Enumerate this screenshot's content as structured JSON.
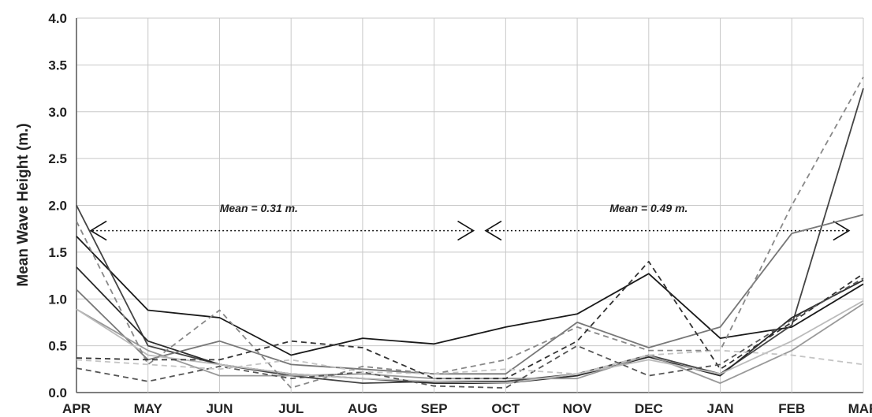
{
  "chart_data": {
    "type": "line",
    "categories": [
      "APR",
      "MAY",
      "JUN",
      "JUL",
      "AUG",
      "SEP",
      "OCT",
      "NOV",
      "DEC",
      "JAN",
      "FEB",
      "MAR"
    ],
    "ylabel": "Mean Wave Height (m.)",
    "ylim": [
      0,
      4.0
    ],
    "yticks": [
      "0.0",
      "0.5",
      "1.0",
      "1.5",
      "2.0",
      "2.5",
      "3.0",
      "3.5",
      "4.0"
    ],
    "grid": true,
    "annotations": [
      {
        "text": "Mean = 0.31 m.",
        "from": "MAY",
        "to": "SEP"
      },
      {
        "text": "Mean = 0.49 m.",
        "from": "OCT",
        "to": "FEB"
      }
    ],
    "series": [
      {
        "values": [
          1.67,
          0.88,
          0.8,
          0.4,
          0.58,
          0.52,
          0.7,
          0.84,
          1.27,
          0.58,
          0.7,
          1.16
        ],
        "color": "#1a1a1a",
        "dash": ""
      },
      {
        "values": [
          2.0,
          0.5,
          0.3,
          0.18,
          0.1,
          0.12,
          0.12,
          0.2,
          0.4,
          0.2,
          0.72,
          3.25
        ],
        "color": "#444444",
        "dash": ""
      },
      {
        "values": [
          1.34,
          0.55,
          0.3,
          0.2,
          0.15,
          0.1,
          0.1,
          0.18,
          0.38,
          0.18,
          0.8,
          1.2
        ],
        "color": "#2a2a2a",
        "dash": ""
      },
      {
        "values": [
          1.1,
          0.35,
          0.55,
          0.3,
          0.25,
          0.2,
          0.2,
          0.75,
          0.48,
          0.7,
          1.7,
          1.9
        ],
        "color": "#777777",
        "dash": ""
      },
      {
        "values": [
          0.89,
          0.45,
          0.18,
          0.18,
          0.2,
          0.15,
          0.15,
          0.15,
          0.4,
          0.1,
          0.45,
          0.95
        ],
        "color": "#999999",
        "dash": ""
      },
      {
        "values": [
          0.89,
          0.4,
          0.3,
          0.2,
          0.15,
          0.12,
          0.1,
          0.2,
          0.35,
          0.2,
          0.55,
          0.98
        ],
        "color": "#bbbbbb",
        "dash": ""
      },
      {
        "values": [
          1.83,
          0.3,
          0.88,
          0.05,
          0.28,
          0.2,
          0.35,
          0.7,
          0.45,
          0.45,
          2.0,
          3.37
        ],
        "color": "#888888",
        "dash": "7,5"
      },
      {
        "values": [
          0.37,
          0.35,
          0.35,
          0.55,
          0.48,
          0.15,
          0.15,
          0.55,
          1.4,
          0.25,
          0.75,
          1.27
        ],
        "color": "#333333",
        "dash": "7,5"
      },
      {
        "values": [
          0.26,
          0.12,
          0.28,
          0.15,
          0.22,
          0.07,
          0.05,
          0.5,
          0.18,
          0.3,
          0.78,
          1.22
        ],
        "color": "#555555",
        "dash": "7,5"
      },
      {
        "values": [
          0.35,
          0.3,
          0.25,
          0.35,
          0.22,
          0.2,
          0.25,
          0.2,
          0.4,
          0.45,
          0.4,
          0.3
        ],
        "color": "#c4c4c4",
        "dash": "7,5"
      }
    ]
  }
}
